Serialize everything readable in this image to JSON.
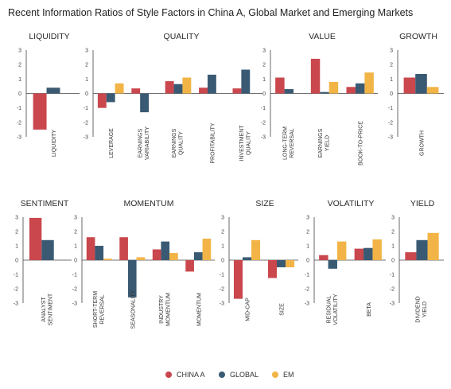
{
  "title": "Recent Information Ratios of Style Factors in China A, Global Market and Emerging Markets",
  "legend": [
    {
      "name": "CHINA A",
      "color": "#c9474d"
    },
    {
      "name": "GLOBAL",
      "color": "#3a5a73"
    },
    {
      "name": "EM",
      "color": "#f2b446"
    }
  ],
  "chart_data": {
    "type": "bar",
    "title": "Recent Information Ratios of Style Factors in China A, Global Market and Emerging Markets",
    "ylim": [
      -3,
      3
    ],
    "yticks": [
      "3",
      "2",
      "1",
      "0",
      "-1",
      "-2",
      "-3"
    ],
    "series_names": [
      "CHINA A",
      "GLOBAL",
      "EM"
    ],
    "grid": false,
    "legend_position": "bottom",
    "panels": [
      {
        "title": "LIQUIDITY",
        "categories": [
          "LIQUIDITY"
        ],
        "values": [
          [
            -2.5,
            0.4,
            0.0
          ]
        ]
      },
      {
        "title": "QUALITY",
        "categories": [
          "LEVERAGE",
          "EARNINGS VARIABILITY",
          "EARNINGS QUALITY",
          "PROFITABILITY",
          "INVESTMENT QUALITY"
        ],
        "values": [
          [
            -1.0,
            -0.6,
            0.7
          ],
          [
            0.35,
            -1.3,
            0.0
          ],
          [
            0.85,
            0.65,
            1.1
          ],
          [
            0.4,
            1.3,
            0.0
          ],
          [
            0.35,
            1.65,
            0.0
          ]
        ]
      },
      {
        "title": "VALUE",
        "categories": [
          "LONG-TERM REVERSAL",
          "EARNINGS YIELD",
          "BOOK-TO-PRICE"
        ],
        "values": [
          [
            1.1,
            0.3,
            0.0
          ],
          [
            2.4,
            0.1,
            0.8
          ],
          [
            0.45,
            0.7,
            1.45
          ]
        ]
      },
      {
        "title": "GROWTH",
        "categories": [
          "GROWTH"
        ],
        "values": [
          [
            1.1,
            1.35,
            0.45
          ]
        ]
      },
      {
        "title": "SENTIMENT",
        "categories": [
          "ANALYST SENTIMENT"
        ],
        "values": [
          [
            2.95,
            1.4,
            0.0
          ]
        ]
      },
      {
        "title": "MOMENTUM",
        "categories": [
          "SHORT-TERM REVERSAL",
          "SEASONALITY",
          "INDUSTRY MOMENTUM",
          "MOMENTUM"
        ],
        "values": [
          [
            1.6,
            1.0,
            0.1
          ],
          [
            1.6,
            -2.6,
            0.2
          ],
          [
            0.75,
            1.3,
            0.5
          ],
          [
            -0.8,
            0.55,
            1.5
          ]
        ]
      },
      {
        "title": "SIZE",
        "categories": [
          "MID-CAP",
          "SIZE"
        ],
        "values": [
          [
            -2.7,
            0.2,
            1.4
          ],
          [
            -1.25,
            -0.5,
            -0.5
          ]
        ]
      },
      {
        "title": "VOLATILITY",
        "categories": [
          "RESIDUAL VOLATILITY",
          "BETA"
        ],
        "values": [
          [
            0.35,
            -0.6,
            1.3
          ],
          [
            0.8,
            0.85,
            1.45
          ]
        ]
      },
      {
        "title": "YIELD",
        "categories": [
          "DIVIDEND YIELD"
        ],
        "values": [
          [
            0.55,
            1.4,
            1.9
          ]
        ]
      }
    ]
  }
}
